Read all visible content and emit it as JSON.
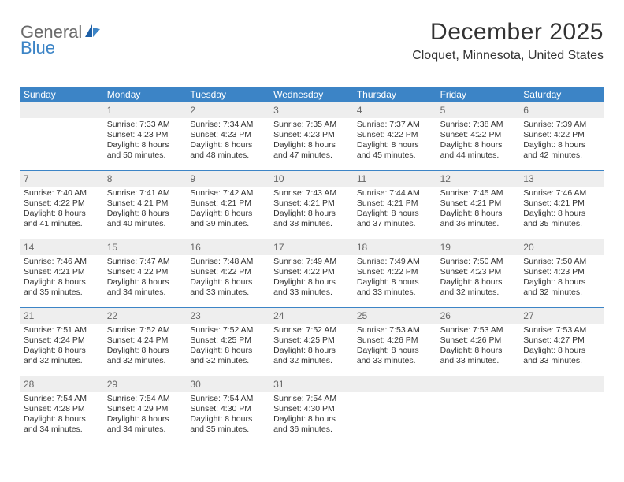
{
  "logo": {
    "part1": "General",
    "part2": "Blue"
  },
  "title": "December 2025",
  "location": "Cloquet, Minnesota, United States",
  "weekdays": [
    "Sunday",
    "Monday",
    "Tuesday",
    "Wednesday",
    "Thursday",
    "Friday",
    "Saturday"
  ],
  "colors": {
    "header_bar": "#3c84c6",
    "daynum_bg": "#eeeeee",
    "rule": "#3c84c6",
    "text": "#333333",
    "logo_gray": "#6a6a6a",
    "logo_blue": "#3c84c6"
  },
  "weeks": [
    [
      null,
      {
        "n": "1",
        "sr": "Sunrise: 7:33 AM",
        "ss": "Sunset: 4:23 PM",
        "d1": "Daylight: 8 hours",
        "d2": "and 50 minutes."
      },
      {
        "n": "2",
        "sr": "Sunrise: 7:34 AM",
        "ss": "Sunset: 4:23 PM",
        "d1": "Daylight: 8 hours",
        "d2": "and 48 minutes."
      },
      {
        "n": "3",
        "sr": "Sunrise: 7:35 AM",
        "ss": "Sunset: 4:23 PM",
        "d1": "Daylight: 8 hours",
        "d2": "and 47 minutes."
      },
      {
        "n": "4",
        "sr": "Sunrise: 7:37 AM",
        "ss": "Sunset: 4:22 PM",
        "d1": "Daylight: 8 hours",
        "d2": "and 45 minutes."
      },
      {
        "n": "5",
        "sr": "Sunrise: 7:38 AM",
        "ss": "Sunset: 4:22 PM",
        "d1": "Daylight: 8 hours",
        "d2": "and 44 minutes."
      },
      {
        "n": "6",
        "sr": "Sunrise: 7:39 AM",
        "ss": "Sunset: 4:22 PM",
        "d1": "Daylight: 8 hours",
        "d2": "and 42 minutes."
      }
    ],
    [
      {
        "n": "7",
        "sr": "Sunrise: 7:40 AM",
        "ss": "Sunset: 4:22 PM",
        "d1": "Daylight: 8 hours",
        "d2": "and 41 minutes."
      },
      {
        "n": "8",
        "sr": "Sunrise: 7:41 AM",
        "ss": "Sunset: 4:21 PM",
        "d1": "Daylight: 8 hours",
        "d2": "and 40 minutes."
      },
      {
        "n": "9",
        "sr": "Sunrise: 7:42 AM",
        "ss": "Sunset: 4:21 PM",
        "d1": "Daylight: 8 hours",
        "d2": "and 39 minutes."
      },
      {
        "n": "10",
        "sr": "Sunrise: 7:43 AM",
        "ss": "Sunset: 4:21 PM",
        "d1": "Daylight: 8 hours",
        "d2": "and 38 minutes."
      },
      {
        "n": "11",
        "sr": "Sunrise: 7:44 AM",
        "ss": "Sunset: 4:21 PM",
        "d1": "Daylight: 8 hours",
        "d2": "and 37 minutes."
      },
      {
        "n": "12",
        "sr": "Sunrise: 7:45 AM",
        "ss": "Sunset: 4:21 PM",
        "d1": "Daylight: 8 hours",
        "d2": "and 36 minutes."
      },
      {
        "n": "13",
        "sr": "Sunrise: 7:46 AM",
        "ss": "Sunset: 4:21 PM",
        "d1": "Daylight: 8 hours",
        "d2": "and 35 minutes."
      }
    ],
    [
      {
        "n": "14",
        "sr": "Sunrise: 7:46 AM",
        "ss": "Sunset: 4:21 PM",
        "d1": "Daylight: 8 hours",
        "d2": "and 35 minutes."
      },
      {
        "n": "15",
        "sr": "Sunrise: 7:47 AM",
        "ss": "Sunset: 4:22 PM",
        "d1": "Daylight: 8 hours",
        "d2": "and 34 minutes."
      },
      {
        "n": "16",
        "sr": "Sunrise: 7:48 AM",
        "ss": "Sunset: 4:22 PM",
        "d1": "Daylight: 8 hours",
        "d2": "and 33 minutes."
      },
      {
        "n": "17",
        "sr": "Sunrise: 7:49 AM",
        "ss": "Sunset: 4:22 PM",
        "d1": "Daylight: 8 hours",
        "d2": "and 33 minutes."
      },
      {
        "n": "18",
        "sr": "Sunrise: 7:49 AM",
        "ss": "Sunset: 4:22 PM",
        "d1": "Daylight: 8 hours",
        "d2": "and 33 minutes."
      },
      {
        "n": "19",
        "sr": "Sunrise: 7:50 AM",
        "ss": "Sunset: 4:23 PM",
        "d1": "Daylight: 8 hours",
        "d2": "and 32 minutes."
      },
      {
        "n": "20",
        "sr": "Sunrise: 7:50 AM",
        "ss": "Sunset: 4:23 PM",
        "d1": "Daylight: 8 hours",
        "d2": "and 32 minutes."
      }
    ],
    [
      {
        "n": "21",
        "sr": "Sunrise: 7:51 AM",
        "ss": "Sunset: 4:24 PM",
        "d1": "Daylight: 8 hours",
        "d2": "and 32 minutes."
      },
      {
        "n": "22",
        "sr": "Sunrise: 7:52 AM",
        "ss": "Sunset: 4:24 PM",
        "d1": "Daylight: 8 hours",
        "d2": "and 32 minutes."
      },
      {
        "n": "23",
        "sr": "Sunrise: 7:52 AM",
        "ss": "Sunset: 4:25 PM",
        "d1": "Daylight: 8 hours",
        "d2": "and 32 minutes."
      },
      {
        "n": "24",
        "sr": "Sunrise: 7:52 AM",
        "ss": "Sunset: 4:25 PM",
        "d1": "Daylight: 8 hours",
        "d2": "and 32 minutes."
      },
      {
        "n": "25",
        "sr": "Sunrise: 7:53 AM",
        "ss": "Sunset: 4:26 PM",
        "d1": "Daylight: 8 hours",
        "d2": "and 33 minutes."
      },
      {
        "n": "26",
        "sr": "Sunrise: 7:53 AM",
        "ss": "Sunset: 4:26 PM",
        "d1": "Daylight: 8 hours",
        "d2": "and 33 minutes."
      },
      {
        "n": "27",
        "sr": "Sunrise: 7:53 AM",
        "ss": "Sunset: 4:27 PM",
        "d1": "Daylight: 8 hours",
        "d2": "and 33 minutes."
      }
    ],
    [
      {
        "n": "28",
        "sr": "Sunrise: 7:54 AM",
        "ss": "Sunset: 4:28 PM",
        "d1": "Daylight: 8 hours",
        "d2": "and 34 minutes."
      },
      {
        "n": "29",
        "sr": "Sunrise: 7:54 AM",
        "ss": "Sunset: 4:29 PM",
        "d1": "Daylight: 8 hours",
        "d2": "and 34 minutes."
      },
      {
        "n": "30",
        "sr": "Sunrise: 7:54 AM",
        "ss": "Sunset: 4:30 PM",
        "d1": "Daylight: 8 hours",
        "d2": "and 35 minutes."
      },
      {
        "n": "31",
        "sr": "Sunrise: 7:54 AM",
        "ss": "Sunset: 4:30 PM",
        "d1": "Daylight: 8 hours",
        "d2": "and 36 minutes."
      },
      null,
      null,
      null
    ]
  ]
}
